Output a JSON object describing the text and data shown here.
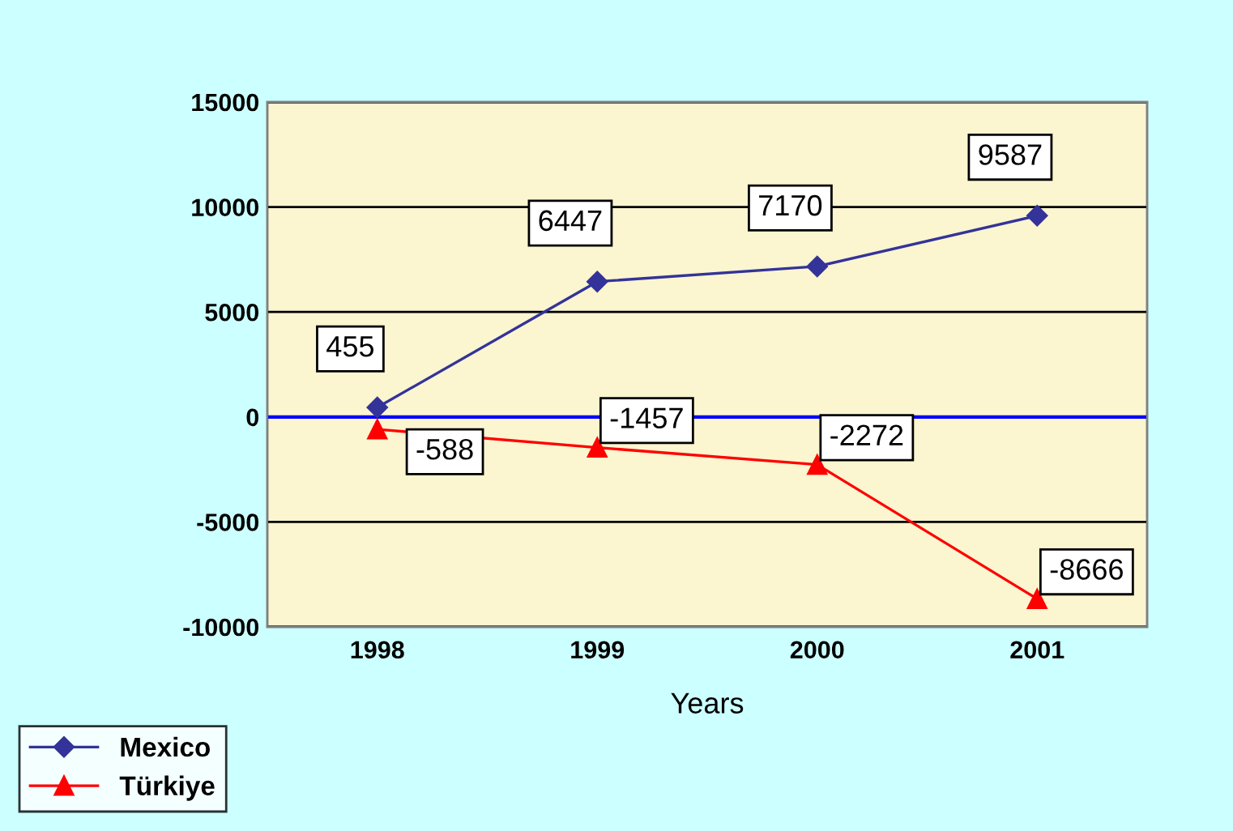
{
  "chart_data": {
    "type": "line",
    "xlabel": "Years",
    "categories": [
      "1998",
      "1999",
      "2000",
      "2001"
    ],
    "series": [
      {
        "name": "Mexico",
        "color": "#333399",
        "marker": "diamond",
        "values": [
          455,
          6447,
          7170,
          9587
        ]
      },
      {
        "name": "Türkiye",
        "color": "#ff0000",
        "marker": "triangle",
        "values": [
          -588,
          -1457,
          -2272,
          -8666
        ]
      }
    ],
    "ref_lines": [
      {
        "axis": "y",
        "value": 0,
        "color": "#0000ff"
      }
    ],
    "ylim": [
      -10000,
      15000
    ],
    "yticks": [
      -10000,
      -5000,
      0,
      5000,
      10000,
      15000
    ],
    "grid": "y",
    "legend": "bottom left",
    "data_labels": true
  }
}
